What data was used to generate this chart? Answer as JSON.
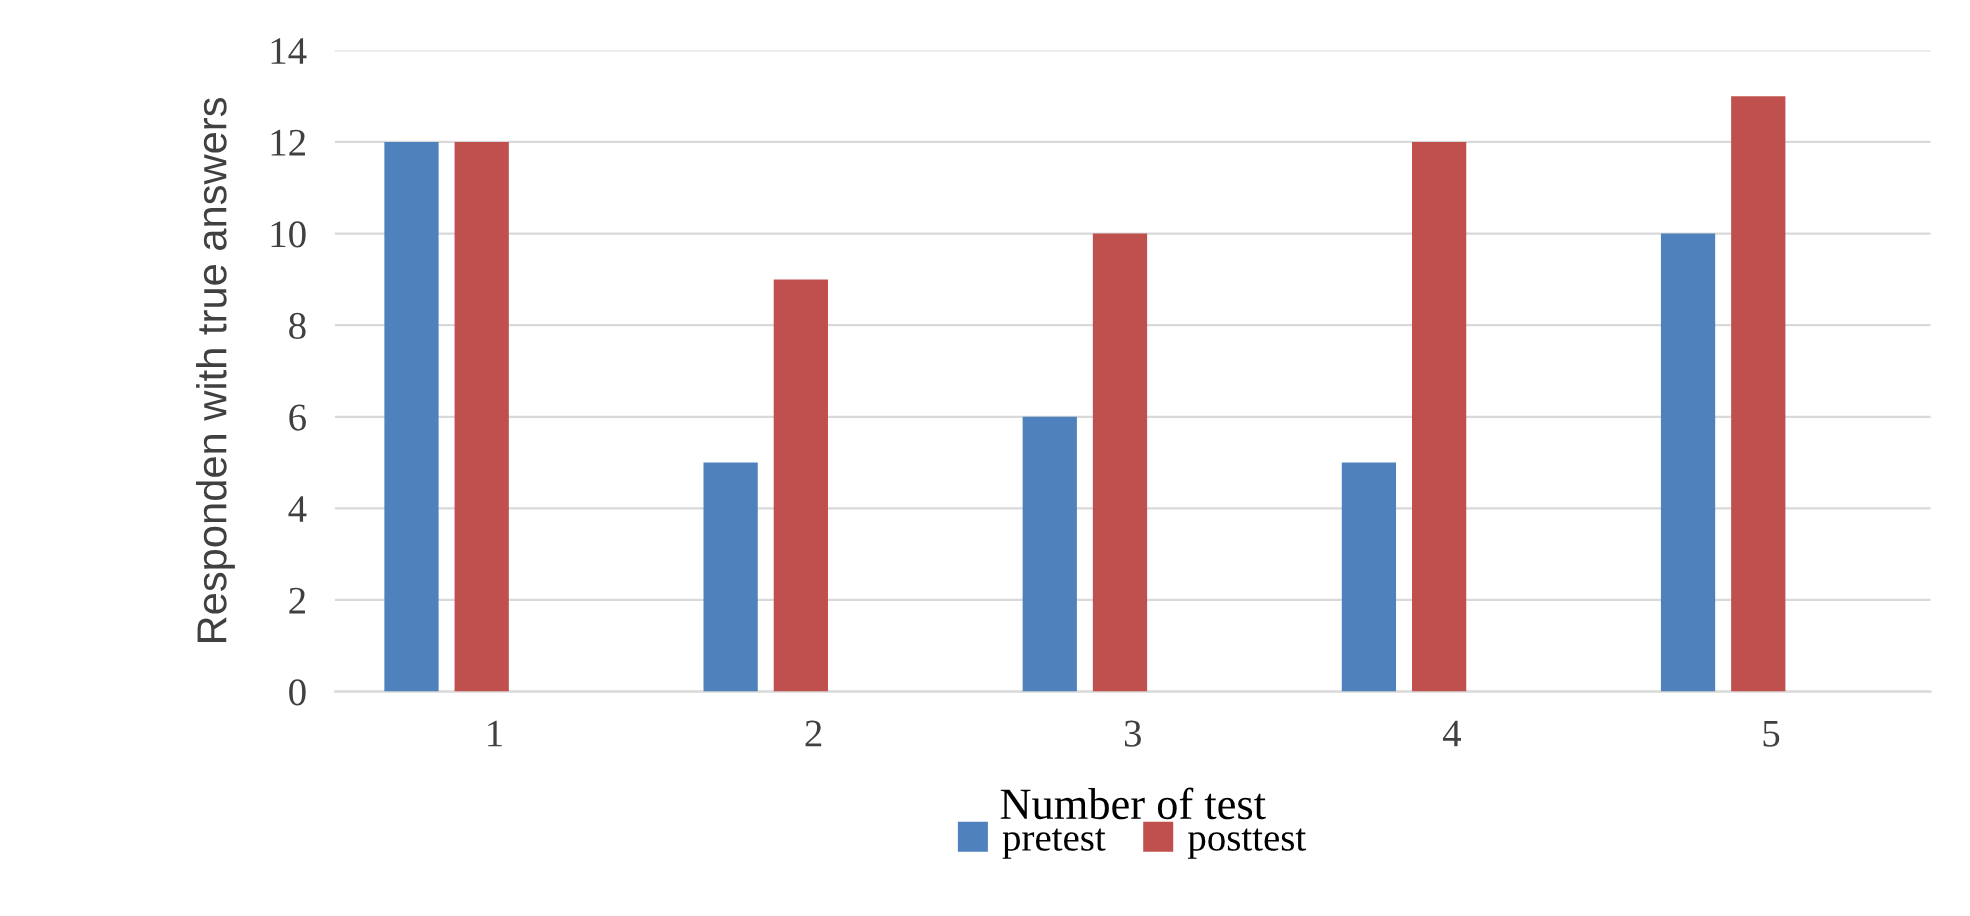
{
  "chart_data": {
    "type": "bar",
    "xlabel": "Number of test",
    "ylabel": "Responden with true answers",
    "categories": [
      "1",
      "2",
      "3",
      "4",
      "5"
    ],
    "series": [
      {
        "name": "pretest",
        "color": "#4f81bd",
        "values": [
          12,
          5,
          6,
          5,
          10
        ]
      },
      {
        "name": "posttest",
        "color": "#c0504d",
        "values": [
          12,
          9,
          10,
          12,
          13
        ]
      }
    ],
    "ylim": [
      0,
      14
    ],
    "yticks": [
      0,
      2,
      4,
      6,
      8,
      10,
      12,
      14
    ],
    "grid": "y",
    "legend": "bottom"
  }
}
